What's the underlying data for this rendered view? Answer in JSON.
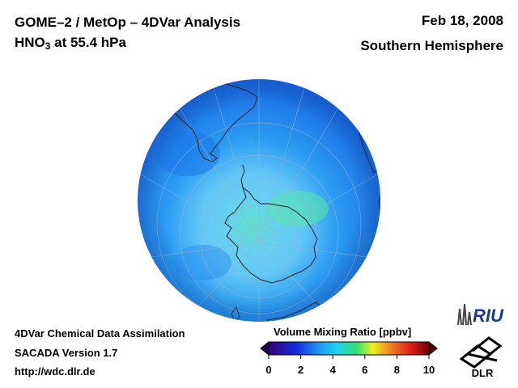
{
  "header": {
    "title_line1": "GOME–2 / MetOp – 4DVar Analysis",
    "species": "HNO",
    "species_subscript": "3",
    "level_text": " at 55.4 hPa",
    "date": "Feb 18, 2008",
    "region": "Southern Hemisphere"
  },
  "footer": {
    "line1": "4DVar Chemical Data Assimilation",
    "line2": "SACADA Version 1.7",
    "line3": "http://wdc.dlr.de"
  },
  "colorbar": {
    "title": "Volume Mixing Ratio [ppbv]",
    "ticks": [
      "0",
      "2",
      "4",
      "6",
      "8",
      "10"
    ],
    "range": [
      0,
      10
    ],
    "stops": [
      "#3a0078",
      "#1030e0",
      "#1e8cf0",
      "#20d0f0",
      "#30e070",
      "#f0f020",
      "#f08020",
      "#e02020",
      "#700000"
    ]
  },
  "logos": {
    "riu_text": "RIU",
    "dlr_text": "DLR"
  },
  "map": {
    "projection": "orthographic-south-polar",
    "field_colors": {
      "edge": "#1a6ce6",
      "mid": "#2a9af2",
      "inner": "#62c8f6",
      "center": "#5ce0c8"
    }
  }
}
